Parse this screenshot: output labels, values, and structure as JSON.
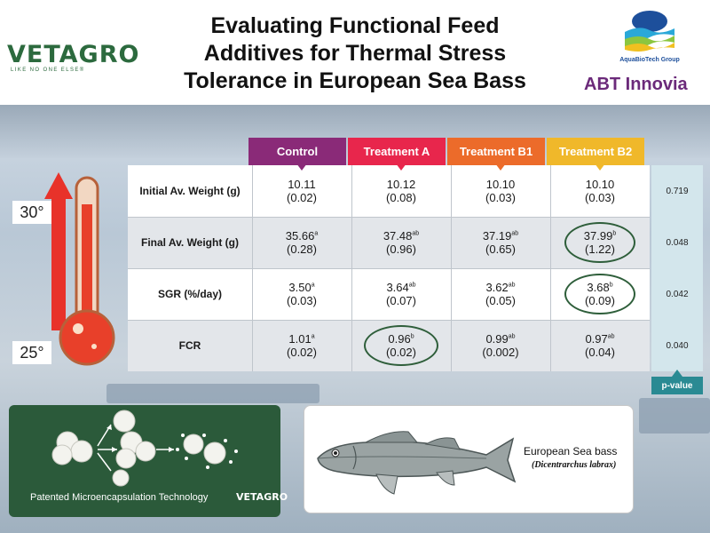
{
  "title_lines": [
    "Evaluating Functional Feed",
    "Additives for Thermal Stress",
    "Tolerance in European Sea Bass"
  ],
  "logos": {
    "vetagro": "VETAGRO",
    "vetagro_tagline": "LIKE NO ONE ELSE®",
    "abt_group": "AquaBioTech Group",
    "abt_innovia": "ABT Innovia"
  },
  "thermometer": {
    "high_label": "30°",
    "low_label": "25°"
  },
  "colors": {
    "control": "#8a2a78",
    "treatment_a": "#e8264c",
    "treatment_b1": "#ec6b2a",
    "treatment_b2": "#f0b82a",
    "pvalue": "#2a8a93",
    "panel_green": "#2b5a3a"
  },
  "chart_data": {
    "type": "table",
    "columns": [
      "Control",
      "Treatment A",
      "Treatment B1",
      "Treatment B2"
    ],
    "rows": [
      {
        "label": "Initial Av. Weight (g)",
        "cells": [
          {
            "value": "10.11",
            "sup": "",
            "sd": "(0.02)"
          },
          {
            "value": "10.12",
            "sup": "",
            "sd": "(0.08)"
          },
          {
            "value": "10.10",
            "sup": "",
            "sd": "(0.03)"
          },
          {
            "value": "10.10",
            "sup": "",
            "sd": "(0.03)"
          }
        ],
        "p_value": "0.719"
      },
      {
        "label": "Final Av. Weight (g)",
        "cells": [
          {
            "value": "35.66",
            "sup": "a",
            "sd": "(0.28)"
          },
          {
            "value": "37.48",
            "sup": "ab",
            "sd": "(0.96)"
          },
          {
            "value": "37.19",
            "sup": "ab",
            "sd": "(0.65)"
          },
          {
            "value": "37.99",
            "sup": "b",
            "sd": "(1.22)"
          }
        ],
        "p_value": "0.048"
      },
      {
        "label": "SGR (%/day)",
        "cells": [
          {
            "value": "3.50",
            "sup": "a",
            "sd": "(0.03)"
          },
          {
            "value": "3.64",
            "sup": "ab",
            "sd": "(0.07)"
          },
          {
            "value": "3.62",
            "sup": "ab",
            "sd": "(0.05)"
          },
          {
            "value": "3.68",
            "sup": "b",
            "sd": "(0.09)"
          }
        ],
        "p_value": "0.042"
      },
      {
        "label": "FCR",
        "cells": [
          {
            "value": "1.01",
            "sup": "a",
            "sd": "(0.02)"
          },
          {
            "value": "0.96",
            "sup": "b",
            "sd": "(0.02)"
          },
          {
            "value": "0.99",
            "sup": "ab",
            "sd": "(0.002)"
          },
          {
            "value": "0.97",
            "sup": "ab",
            "sd": "(0.04)"
          }
        ],
        "p_value": "0.040"
      }
    ],
    "p_value_label": "p-value",
    "highlighted_cells": [
      [
        1,
        3
      ],
      [
        2,
        3
      ],
      [
        3,
        1
      ]
    ]
  },
  "microencapsulation": {
    "caption": "Patented Microencapsulation Technology",
    "brand": "VETAGRO"
  },
  "fish": {
    "common_name": "European Sea bass",
    "scientific_name": "(Dicentrarchus labrax)"
  }
}
